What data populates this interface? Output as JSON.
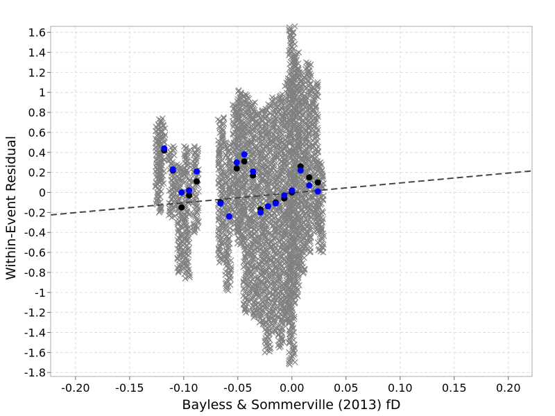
{
  "chart_data": {
    "type": "scatter",
    "title": "",
    "xlabel": "Bayless & Sommerville (2013) fD",
    "ylabel": "Within-Event Residual",
    "xlim": [
      -0.223,
      0.222
    ],
    "ylim": [
      -1.84,
      1.66
    ],
    "grid": true,
    "x_ticks": [
      -0.2,
      -0.15,
      -0.1,
      -0.05,
      0.0,
      0.05,
      0.1,
      0.15,
      0.2
    ],
    "x_tick_labels": [
      "-0.20",
      "-0.15",
      "-0.10",
      "-0.05",
      "0.00",
      "0.05",
      "0.10",
      "0.15",
      "0.20"
    ],
    "y_ticks": [
      1.6,
      1.4,
      1.2,
      1.0,
      0.8,
      0.6,
      0.4,
      0.2,
      0.0,
      -0.2,
      -0.4,
      -0.6,
      -0.8,
      -1.0,
      -1.2,
      -1.4,
      -1.6,
      -1.8
    ],
    "y_tick_labels": [
      "1.6",
      "1.4",
      "1.2",
      "1",
      "0.8",
      "0.6",
      "0.4",
      "0.2",
      "0",
      "-0.2",
      "-0.4",
      "-0.6",
      "-0.8",
      "-1",
      "-1.2",
      "-1.4",
      "-1.6",
      "-1.8"
    ],
    "colors": {
      "residuals": "#808080",
      "bin_means": "#000000",
      "bin_fit": "#0000ff",
      "trend": "#444444",
      "grid": "#dddddd",
      "frame": "#aaaaaa"
    },
    "residual_columns": [
      {
        "x": -0.1235,
        "ymin": -0.2,
        "ymax": 0.68
      },
      {
        "x": -0.12,
        "ymin": 0.08,
        "ymax": 0.74
      },
      {
        "x": -0.111,
        "ymin": -0.25,
        "ymax": 0.46
      },
      {
        "x": -0.1035,
        "ymin": -0.8,
        "ymax": 0.28
      },
      {
        "x": -0.097,
        "ymin": -0.86,
        "ymax": 0.46
      },
      {
        "x": -0.089,
        "ymin": -0.4,
        "ymax": 0.46
      },
      {
        "x": -0.0655,
        "ymin": -0.7,
        "ymax": 0.75
      },
      {
        "x": -0.059,
        "ymin": -0.98,
        "ymax": 0.5
      },
      {
        "x": -0.052,
        "ymin": -0.4,
        "ymax": 0.9
      },
      {
        "x": -0.0475,
        "ymin": -0.52,
        "ymax": 1.02
      },
      {
        "x": -0.042,
        "ymin": -1.2,
        "ymax": 0.98
      },
      {
        "x": -0.0355,
        "ymin": -1.25,
        "ymax": 0.9
      },
      {
        "x": -0.029,
        "ymin": -1.32,
        "ymax": 0.82
      },
      {
        "x": -0.0225,
        "ymin": -1.6,
        "ymax": 0.88
      },
      {
        "x": -0.0165,
        "ymin": -1.4,
        "ymax": 0.95
      },
      {
        "x": -0.01,
        "ymin": -1.55,
        "ymax": 0.98
      },
      {
        "x": -0.004,
        "ymin": -1.3,
        "ymax": 1.14
      },
      {
        "x": 0.0,
        "ymin": -1.72,
        "ymax": 1.66
      },
      {
        "x": 0.004,
        "ymin": -1.05,
        "ymax": 1.4
      },
      {
        "x": 0.009,
        "ymin": -0.82,
        "ymax": 1.2
      },
      {
        "x": 0.015,
        "ymin": -0.6,
        "ymax": 1.3
      },
      {
        "x": 0.0215,
        "ymin": -0.4,
        "ymax": 1.1
      },
      {
        "x": 0.0265,
        "ymin": -0.6,
        "ymax": 0.3
      }
    ],
    "series": [
      {
        "x": [
          -0.118,
          -0.11,
          -0.102,
          -0.095,
          -0.088,
          -0.066,
          -0.058,
          -0.051,
          -0.044,
          -0.036,
          -0.029,
          -0.022,
          -0.015,
          -0.007,
          0.0,
          0.008,
          0.016,
          0.024
        ],
        "y": [
          0.42,
          0.22,
          -0.15,
          -0.03,
          0.11,
          -0.1,
          -0.24,
          0.24,
          0.31,
          0.17,
          -0.17,
          -0.14,
          -0.1,
          -0.06,
          0.0,
          0.26,
          0.15,
          0.1
        ]
      },
      {
        "x": [
          -0.118,
          -0.11,
          -0.102,
          -0.095,
          -0.088,
          -0.066,
          -0.058,
          -0.051,
          -0.044,
          -0.036,
          -0.029,
          -0.022,
          -0.015,
          -0.007,
          0.0,
          0.008,
          0.016,
          0.024
        ],
        "y": [
          0.44,
          0.23,
          0.0,
          0.02,
          0.21,
          -0.11,
          -0.24,
          0.3,
          0.38,
          0.21,
          -0.2,
          -0.14,
          -0.11,
          -0.03,
          0.02,
          0.22,
          0.07,
          0.01
        ]
      }
    ],
    "trend_line": {
      "x": [
        -0.223,
        0.222
      ],
      "y": [
        -0.225,
        0.215
      ]
    }
  }
}
